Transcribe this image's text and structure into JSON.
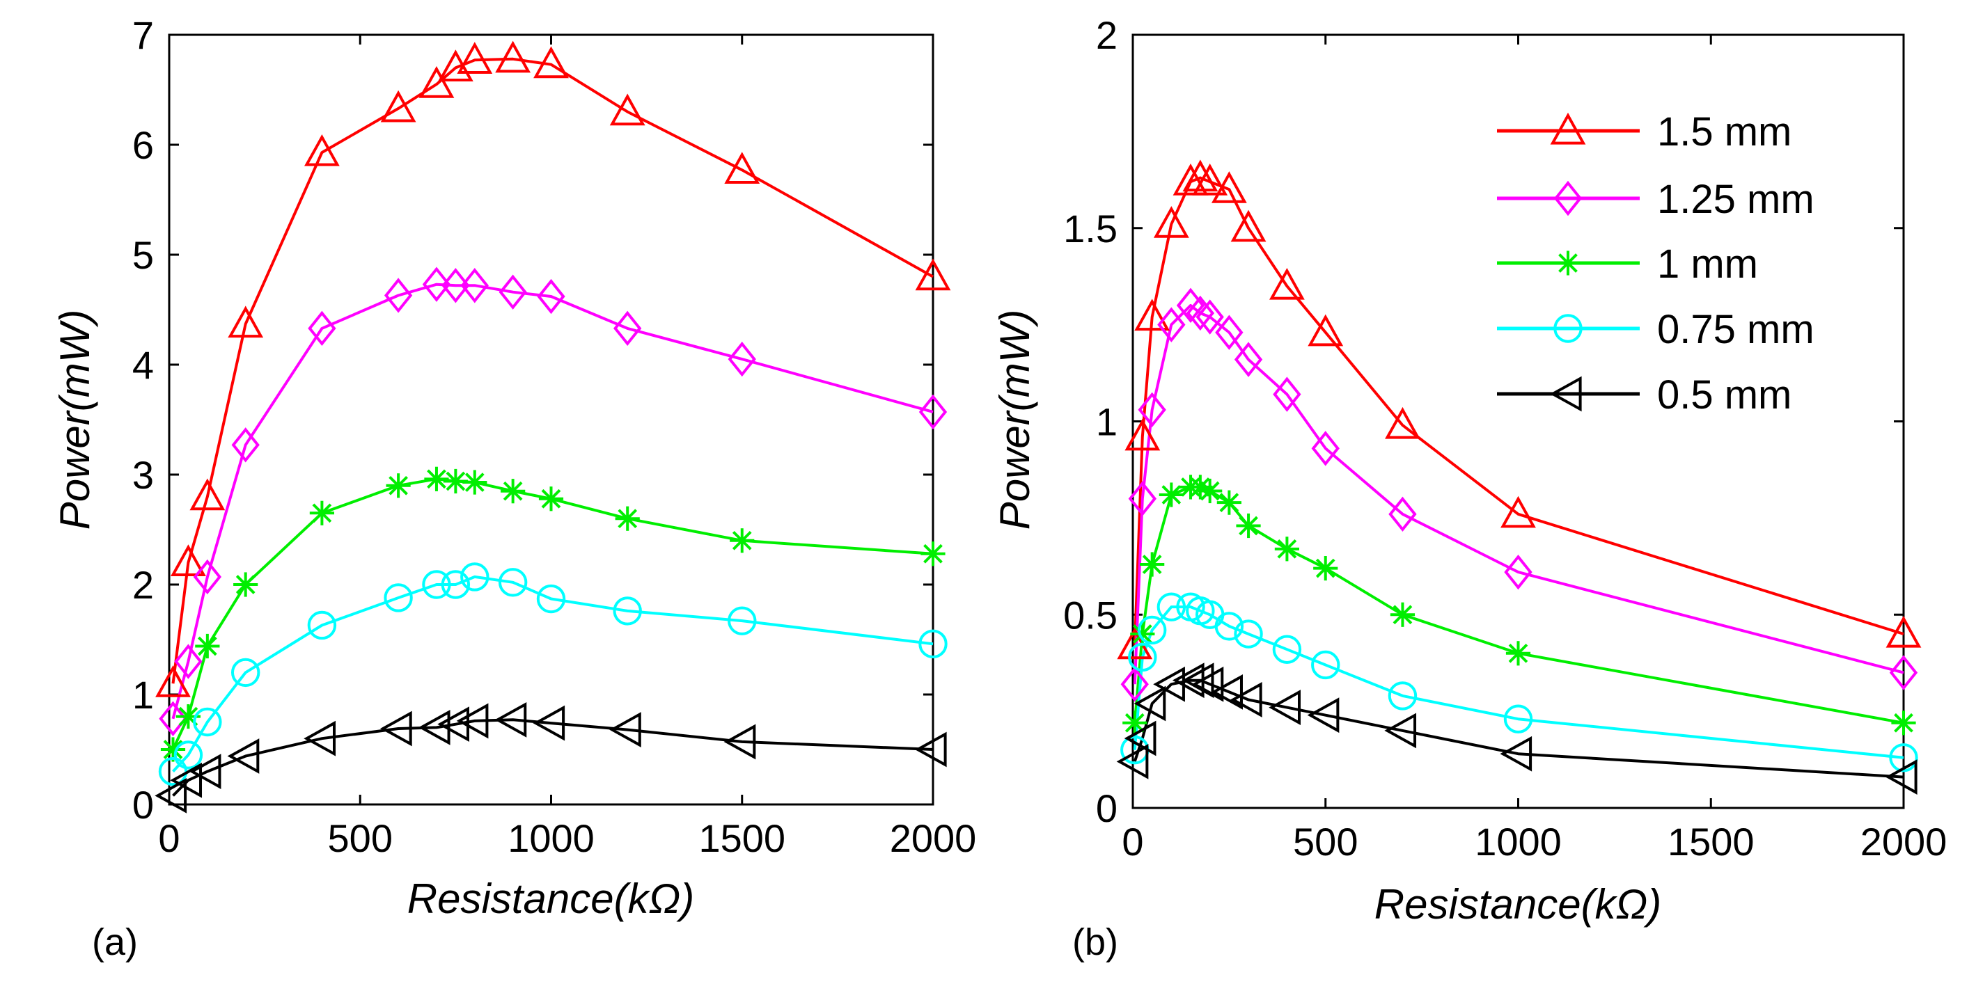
{
  "chart_data": [
    {
      "type": "line",
      "panel_label": "(a)",
      "xlabel": "Resistance(kΩ)",
      "ylabel": "Power(mW)",
      "xlim": [
        0,
        2000
      ],
      "ylim": [
        0,
        7
      ],
      "xticks": [
        0,
        500,
        1000,
        1500,
        2000
      ],
      "yticks": [
        0,
        1,
        2,
        3,
        4,
        5,
        6,
        7
      ],
      "grid": false,
      "series": [
        {
          "name": "1.5 mm",
          "color": "#ff0000",
          "marker": "triangle-up",
          "x": [
            10,
            50,
            100,
            200,
            400,
            600,
            700,
            750,
            800,
            900,
            1000,
            1200,
            1500,
            2000
          ],
          "y": [
            1.1,
            2.2,
            2.8,
            4.37,
            5.93,
            6.33,
            6.55,
            6.7,
            6.77,
            6.78,
            6.73,
            6.3,
            5.77,
            4.8
          ]
        },
        {
          "name": "1.25 mm",
          "color": "#ff00ff",
          "marker": "diamond",
          "x": [
            10,
            50,
            100,
            200,
            400,
            600,
            700,
            750,
            800,
            900,
            1000,
            1200,
            1500,
            2000
          ],
          "y": [
            0.78,
            1.3,
            2.07,
            3.27,
            4.33,
            4.63,
            4.73,
            4.72,
            4.72,
            4.66,
            4.62,
            4.33,
            4.05,
            3.57
          ]
        },
        {
          "name": "1 mm",
          "color": "#00ee00",
          "marker": "asterisk",
          "x": [
            10,
            50,
            100,
            200,
            400,
            600,
            700,
            750,
            800,
            900,
            1000,
            1200,
            1500,
            2000
          ],
          "y": [
            0.5,
            0.8,
            1.44,
            2.0,
            2.65,
            2.9,
            2.96,
            2.94,
            2.93,
            2.85,
            2.78,
            2.6,
            2.4,
            2.28
          ]
        },
        {
          "name": "0.75 mm",
          "color": "#00ffff",
          "marker": "circle",
          "x": [
            10,
            50,
            100,
            200,
            400,
            600,
            700,
            750,
            800,
            900,
            1000,
            1200,
            1500,
            2000
          ],
          "y": [
            0.3,
            0.45,
            0.75,
            1.2,
            1.63,
            1.88,
            2.0,
            2.0,
            2.07,
            2.02,
            1.87,
            1.76,
            1.67,
            1.46
          ]
        },
        {
          "name": "0.5 mm",
          "color": "#000000",
          "marker": "triangle-left",
          "x": [
            10,
            50,
            100,
            200,
            400,
            600,
            700,
            750,
            800,
            900,
            1000,
            1200,
            1500,
            2000
          ],
          "y": [
            0.08,
            0.22,
            0.3,
            0.44,
            0.6,
            0.69,
            0.7,
            0.73,
            0.76,
            0.77,
            0.74,
            0.68,
            0.57,
            0.5
          ]
        }
      ]
    },
    {
      "type": "line",
      "panel_label": "(b)",
      "xlabel": "Resistance(kΩ)",
      "ylabel": "Power(mW)",
      "xlim": [
        0,
        2000
      ],
      "ylim": [
        0,
        2
      ],
      "xticks": [
        0,
        500,
        1000,
        1500,
        2000
      ],
      "yticks": [
        0,
        0.5,
        1,
        1.5,
        2
      ],
      "ytick_labels": [
        "0",
        "0.5",
        "1",
        "1.5",
        "2"
      ],
      "grid": false,
      "legend": "top-right",
      "series": [
        {
          "name": "1.5 mm",
          "color": "#ff0000",
          "marker": "triangle-up",
          "x": [
            5,
            25,
            50,
            100,
            150,
            175,
            200,
            250,
            300,
            400,
            500,
            700,
            1000,
            2000
          ],
          "y": [
            0.42,
            0.96,
            1.27,
            1.51,
            1.62,
            1.63,
            1.62,
            1.6,
            1.5,
            1.35,
            1.23,
            0.99,
            0.76,
            0.45
          ]
        },
        {
          "name": "1.25 mm",
          "color": "#ff00ff",
          "marker": "diamond",
          "x": [
            5,
            25,
            50,
            100,
            150,
            175,
            200,
            250,
            300,
            400,
            500,
            700,
            1000,
            2000
          ],
          "y": [
            0.32,
            0.8,
            1.03,
            1.25,
            1.3,
            1.28,
            1.27,
            1.23,
            1.16,
            1.07,
            0.93,
            0.76,
            0.61,
            0.35
          ]
        },
        {
          "name": "1 mm",
          "color": "#00ee00",
          "marker": "asterisk",
          "x": [
            5,
            25,
            50,
            100,
            150,
            175,
            200,
            250,
            300,
            400,
            500,
            700,
            1000,
            2000
          ],
          "y": [
            0.22,
            0.45,
            0.63,
            0.81,
            0.83,
            0.83,
            0.82,
            0.79,
            0.73,
            0.67,
            0.62,
            0.5,
            0.4,
            0.22
          ]
        },
        {
          "name": "0.75 mm",
          "color": "#00ffff",
          "marker": "circle",
          "x": [
            5,
            25,
            50,
            100,
            150,
            175,
            200,
            250,
            300,
            400,
            500,
            700,
            1000,
            2000
          ],
          "y": [
            0.15,
            0.39,
            0.46,
            0.52,
            0.52,
            0.51,
            0.5,
            0.47,
            0.45,
            0.41,
            0.37,
            0.29,
            0.23,
            0.13
          ]
        },
        {
          "name": "0.5 mm",
          "color": "#000000",
          "marker": "triangle-left",
          "x": [
            5,
            25,
            50,
            100,
            150,
            175,
            200,
            250,
            300,
            400,
            500,
            700,
            1000,
            2000
          ],
          "y": [
            0.12,
            0.18,
            0.27,
            0.32,
            0.33,
            0.33,
            0.32,
            0.3,
            0.28,
            0.26,
            0.24,
            0.2,
            0.14,
            0.08
          ]
        }
      ]
    }
  ]
}
